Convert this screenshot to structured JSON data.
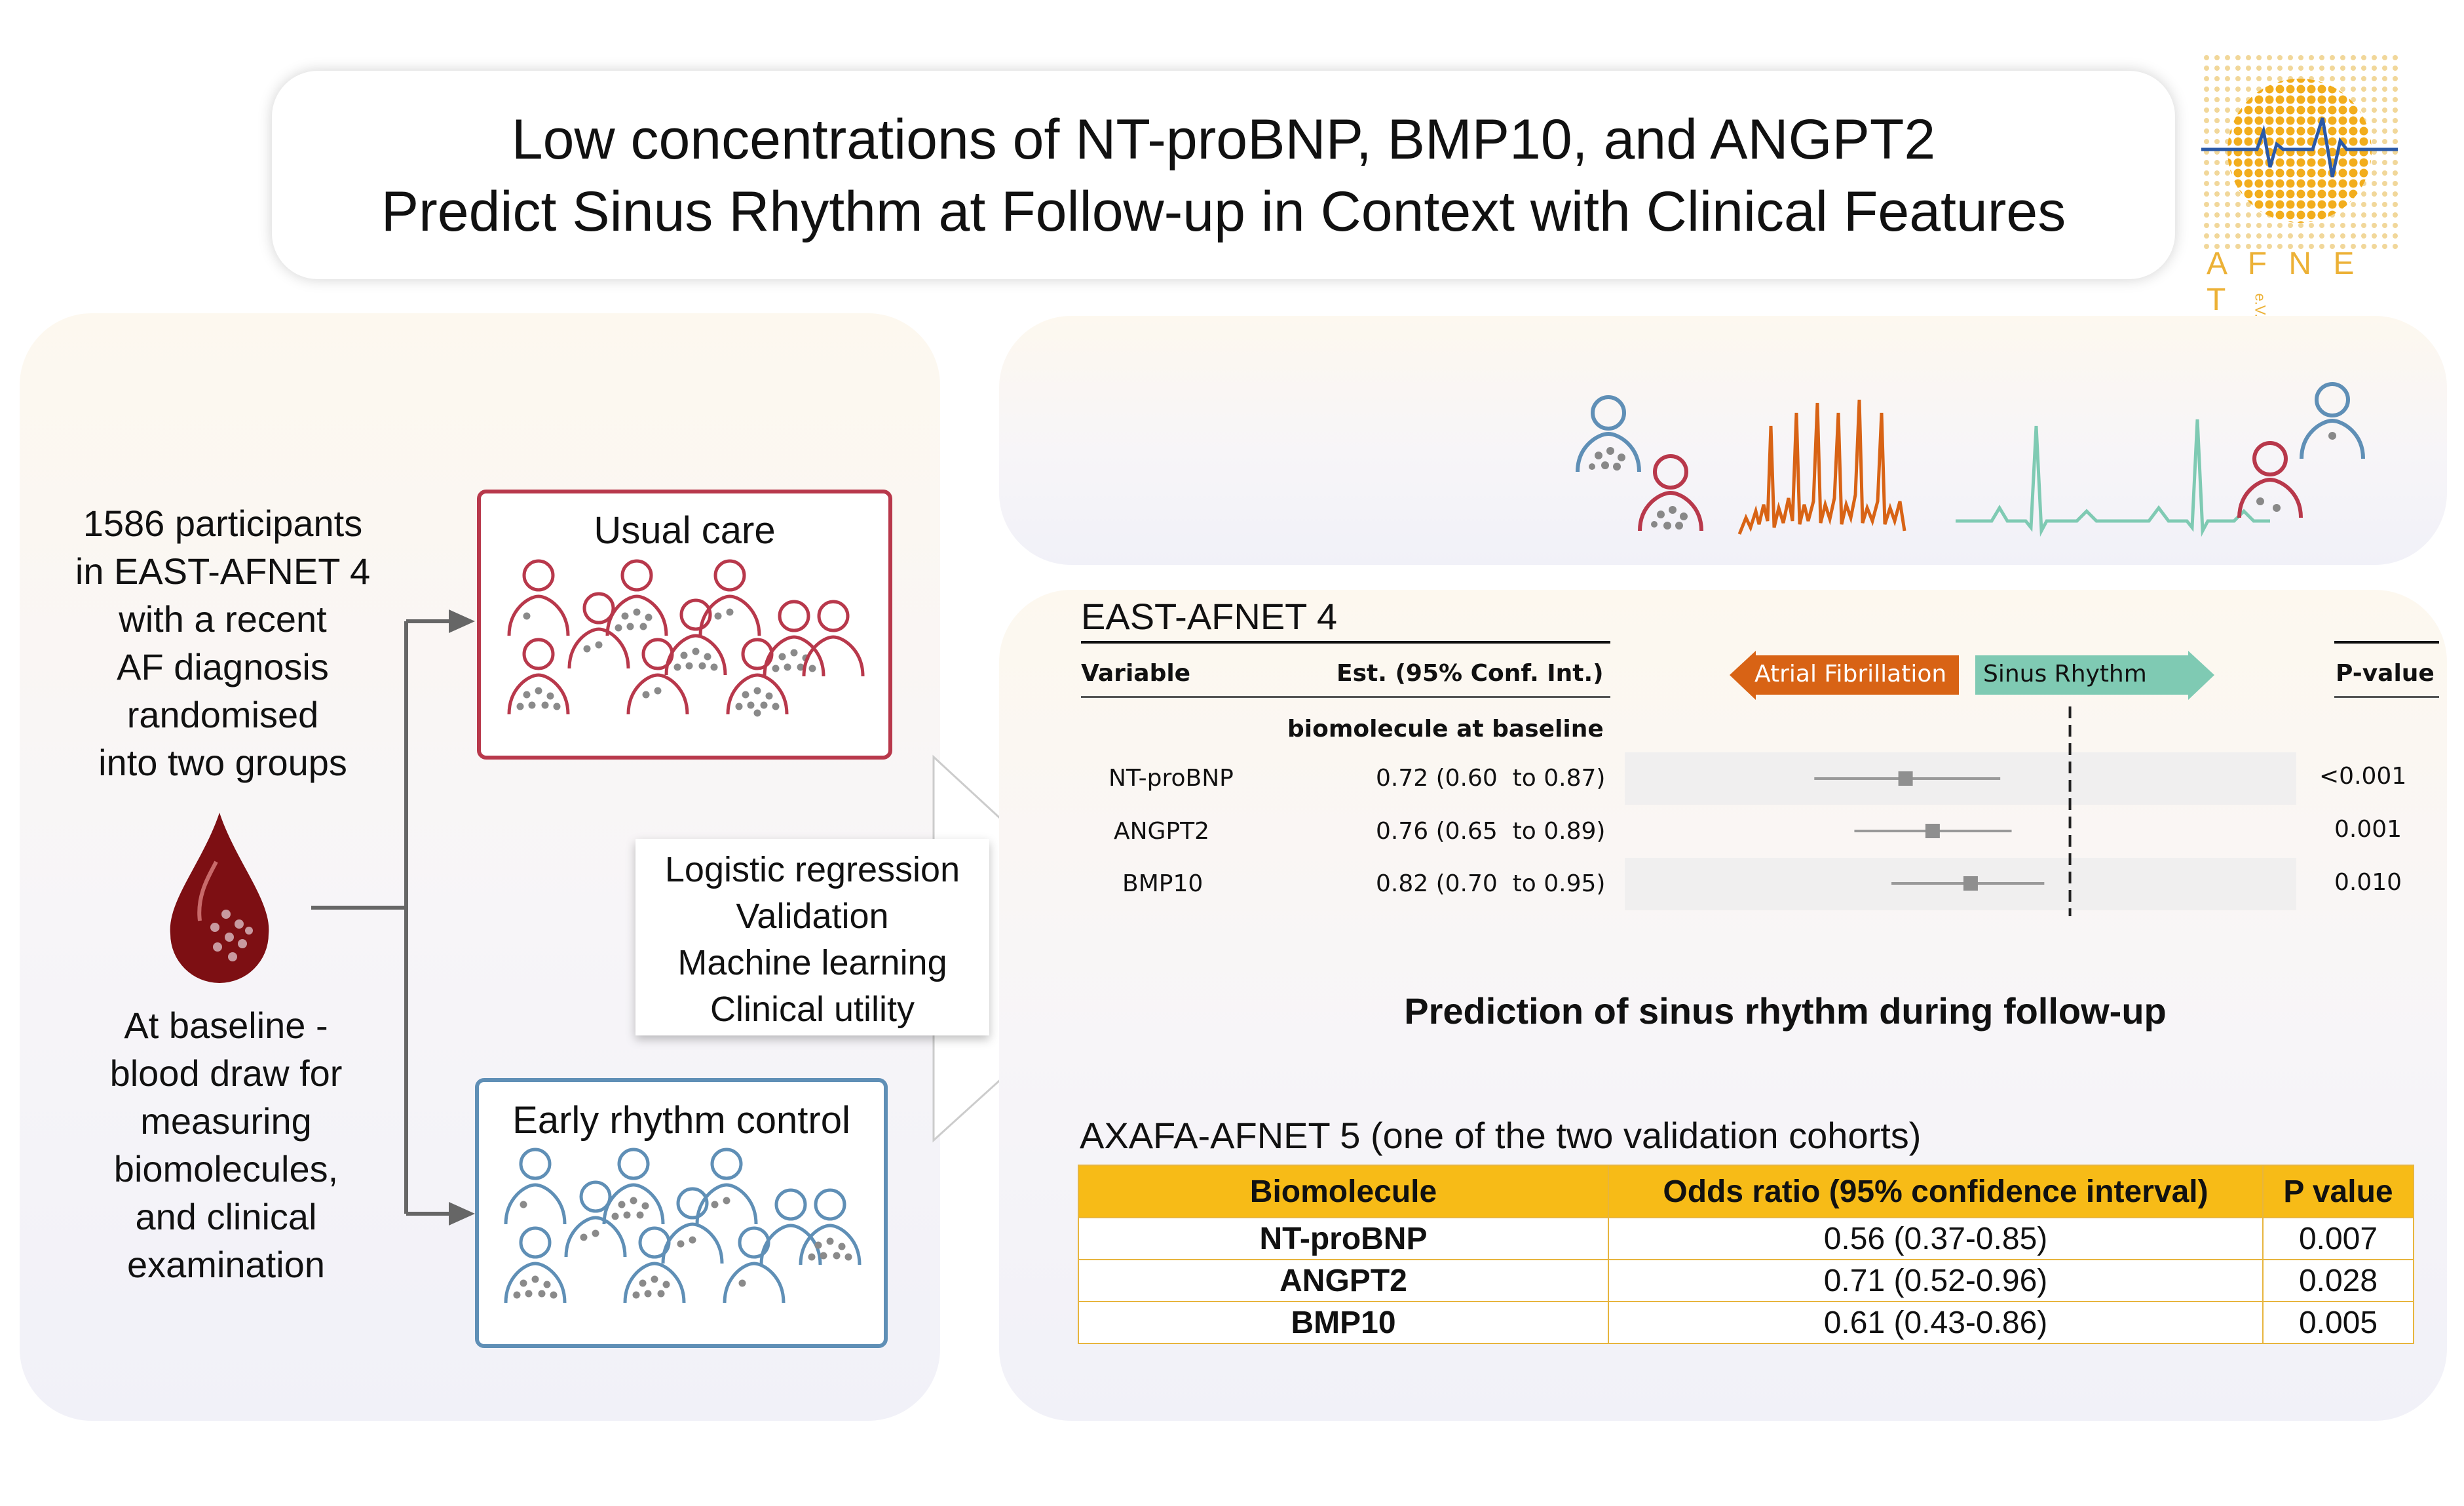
{
  "title": {
    "line1": "Low concentrations of NT-proBNP, BMP10, and ANGPT2",
    "line2": "Predict Sinus Rhythm at Follow-up in Context with Clinical Features"
  },
  "logo": {
    "text": "A F N E T",
    "suffix": "e.V."
  },
  "left_panel": {
    "participants_lines": [
      "1586 participants",
      "in EAST-AFNET 4",
      "with a recent",
      "AF diagnosis",
      "randomised",
      "into two groups"
    ],
    "baseline_lines": [
      "At baseline -",
      "blood draw for",
      "measuring",
      "biomolecules,",
      "and clinical",
      "examination"
    ],
    "usual_care_label": "Usual care",
    "early_rhythm_label": "Early rhythm control",
    "methods": [
      "Logistic regression",
      "Validation",
      "Machine learning",
      "Clinical utility"
    ]
  },
  "forest": {
    "title": "EAST-AFNET 4",
    "col_variable": "Variable",
    "col_est": "Est. (95% Conf. Int.)",
    "col_p": "P-value",
    "subheader": "biomolecule at baseline",
    "arrow_left": "Atrial Fibrillation",
    "arrow_right": "Sinus Rhythm",
    "rows": [
      {
        "variable": "NT-proBNP",
        "est": "0.72 (0.60  to 0.87)",
        "p": "<0.001"
      },
      {
        "variable": "ANGPT2",
        "est": "0.76 (0.65  to 0.89)",
        "p": "0.001"
      },
      {
        "variable": "BMP10",
        "est": "0.82 (0.70  to 0.95)",
        "p": "0.010"
      }
    ]
  },
  "prediction_heading": "Prediction of sinus rhythm during follow-up",
  "validation": {
    "title": "AXAFA-AFNET 5 (one of the two validation cohorts)",
    "headers": [
      "Biomolecule",
      "Odds ratio (95% confidence interval)",
      "P value"
    ],
    "rows": [
      {
        "biomolecule": "NT-proBNP",
        "or": "0.56 (0.37-0.85)",
        "p": "0.007"
      },
      {
        "biomolecule": "ANGPT2",
        "or": "0.71 (0.52-0.96)",
        "p": "0.028"
      },
      {
        "biomolecule": "BMP10",
        "or": "0.61 (0.43-0.86)",
        "p": "0.005"
      }
    ]
  },
  "chart_data": {
    "type": "forest",
    "title": "EAST-AFNET 4",
    "categories": [
      "NT-proBNP",
      "ANGPT2",
      "BMP10"
    ],
    "estimates": [
      0.72,
      0.76,
      0.82
    ],
    "ci_low": [
      0.6,
      0.65,
      0.7
    ],
    "ci_high": [
      0.87,
      0.89,
      0.95
    ],
    "p_values": [
      "<0.001",
      "0.001",
      "0.010"
    ],
    "reference_line": 1.0
  },
  "colors": {
    "red": "#b8384b",
    "blue": "#5f8fb6",
    "orange": "#d86315",
    "teal": "#7fcab3",
    "gold": "#f7bb17",
    "blood": "#7d0f13"
  }
}
